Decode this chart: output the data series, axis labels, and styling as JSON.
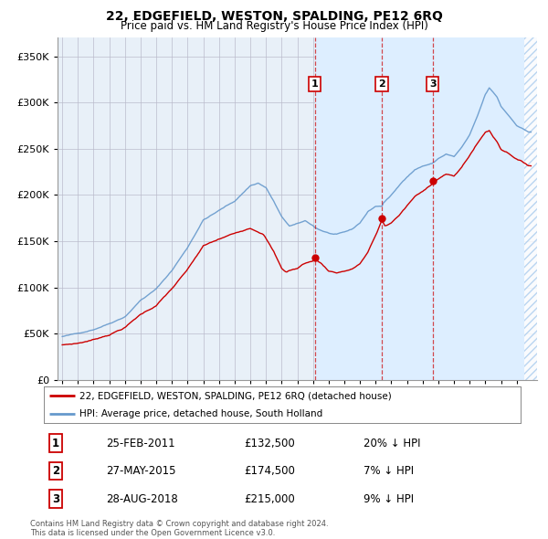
{
  "title": "22, EDGEFIELD, WESTON, SPALDING, PE12 6RQ",
  "subtitle": "Price paid vs. HM Land Registry's House Price Index (HPI)",
  "ylabel_ticks": [
    "£0",
    "£50K",
    "£100K",
    "£150K",
    "£200K",
    "£250K",
    "£300K",
    "£350K"
  ],
  "ytick_vals": [
    0,
    50000,
    100000,
    150000,
    200000,
    250000,
    300000,
    350000
  ],
  "ylim": [
    0,
    370000
  ],
  "xlim_start": 1994.7,
  "xlim_end": 2025.3,
  "transaction_dates": [
    2011.12,
    2015.4,
    2018.65
  ],
  "transaction_labels": [
    "1",
    "2",
    "3"
  ],
  "transaction_prices": [
    132500,
    174500,
    215000
  ],
  "legend_line1": "22, EDGEFIELD, WESTON, SPALDING, PE12 6RQ (detached house)",
  "legend_line2": "HPI: Average price, detached house, South Holland",
  "table_rows": [
    [
      "1",
      "25-FEB-2011",
      "£132,500",
      "20% ↓ HPI"
    ],
    [
      "2",
      "27-MAY-2015",
      "£174,500",
      "7% ↓ HPI"
    ],
    [
      "3",
      "28-AUG-2018",
      "£215,000",
      "9% ↓ HPI"
    ]
  ],
  "footnote": "Contains HM Land Registry data © Crown copyright and database right 2024.\nThis data is licensed under the Open Government Licence v3.0.",
  "red_color": "#cc0000",
  "blue_color": "#6699cc",
  "shade_color": "#ddeeff",
  "background_color": "#ffffff",
  "plot_bg_color": "#e8f0f8",
  "grid_color": "#bbbbcc"
}
